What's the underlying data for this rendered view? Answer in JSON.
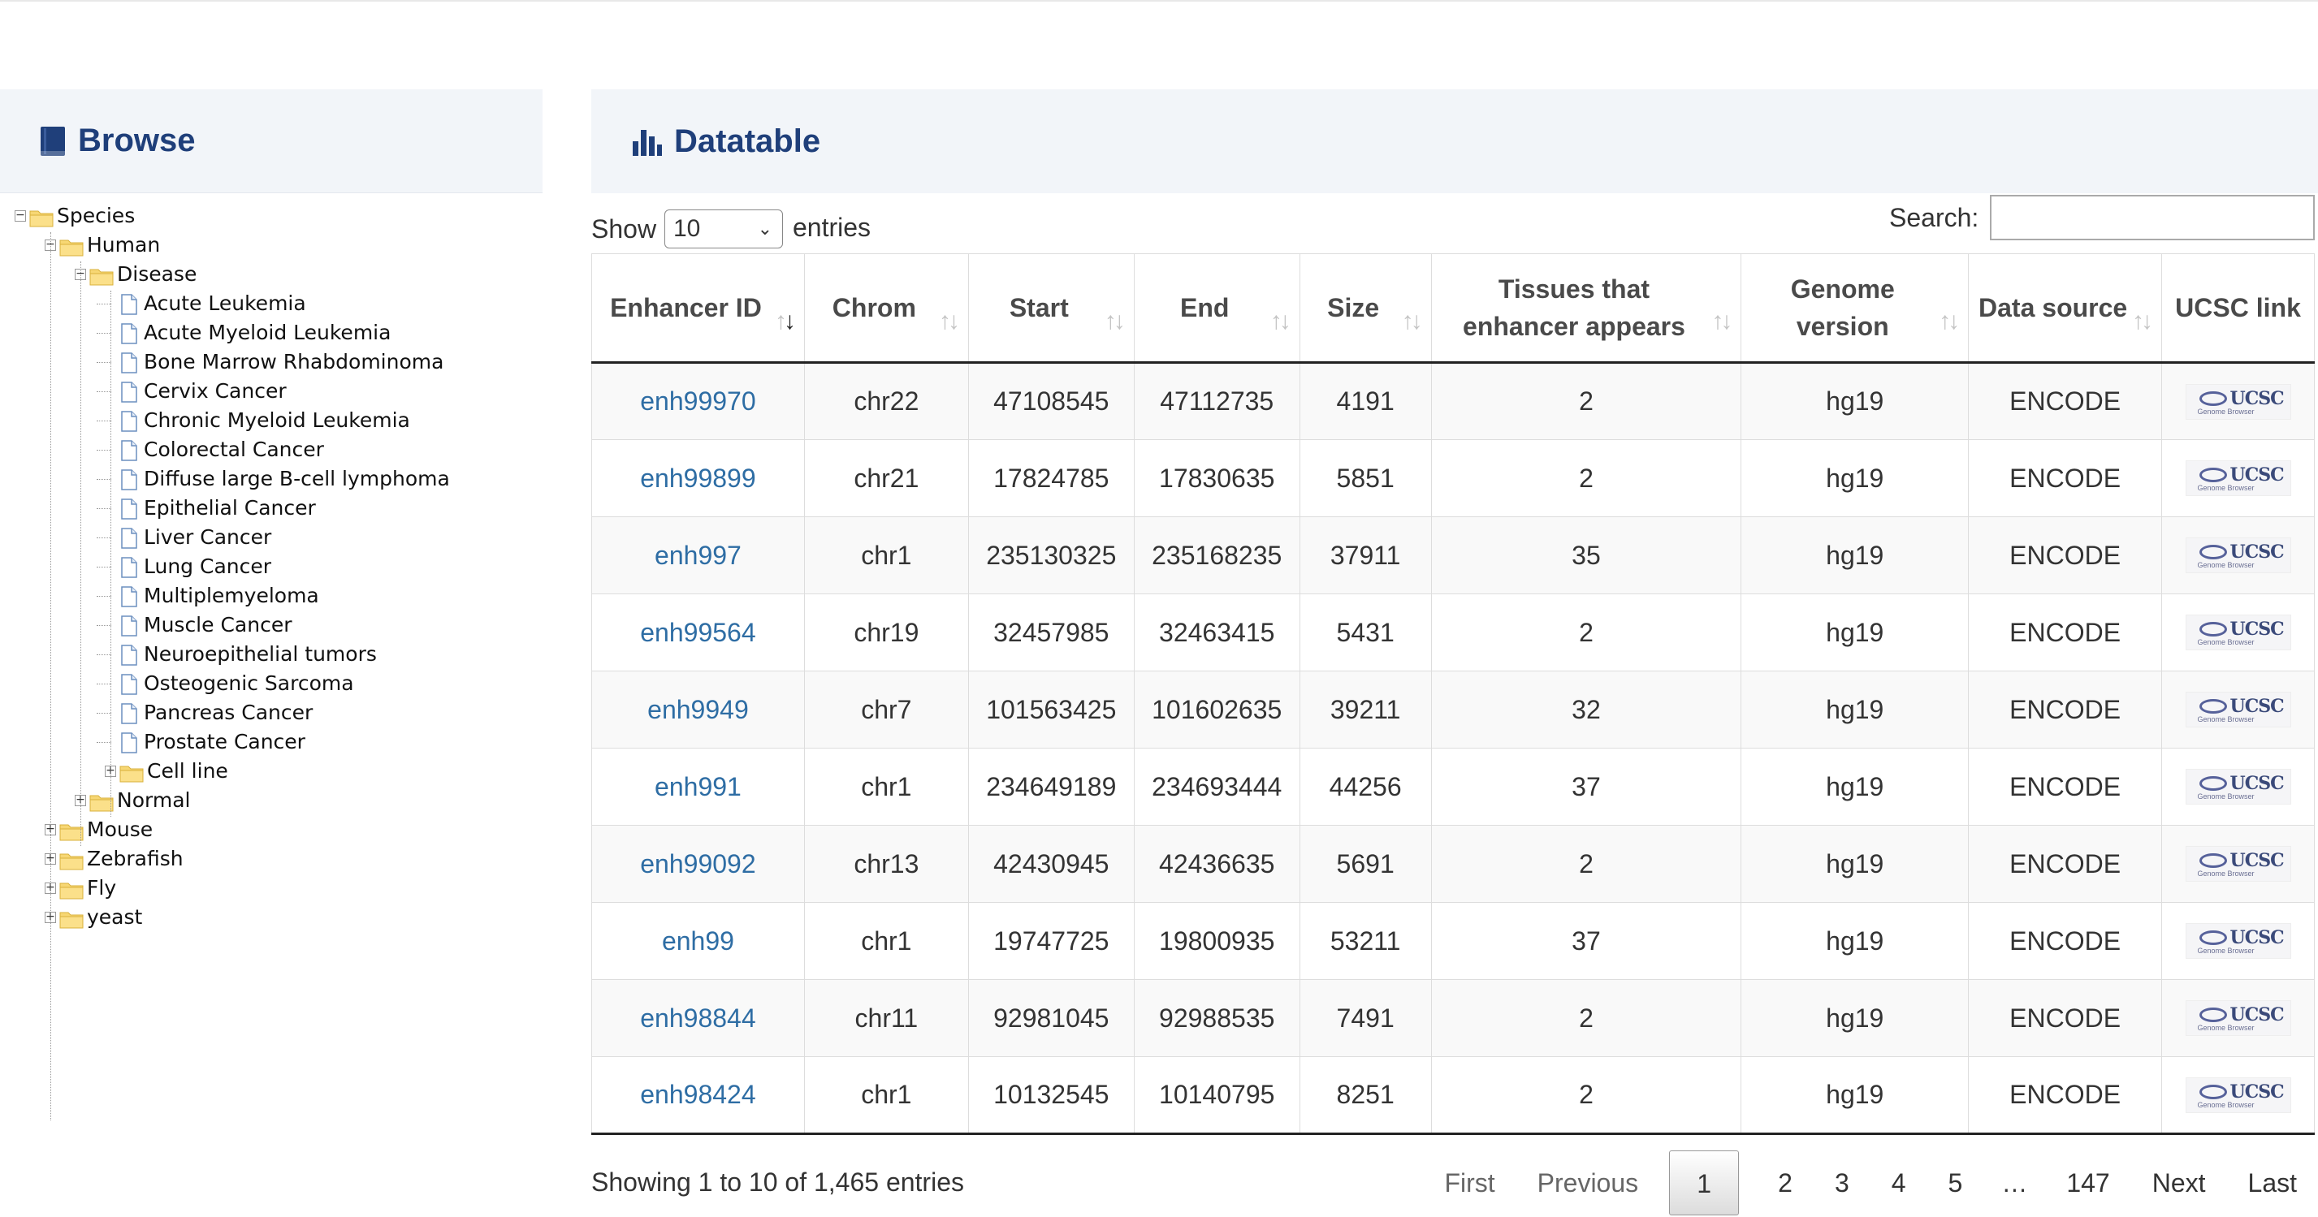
{
  "browse": {
    "title": "Browse",
    "tree": [
      {
        "label": "Species",
        "level": 0,
        "type": "folder",
        "toggle": "−"
      },
      {
        "label": "Human",
        "level": 1,
        "type": "folder",
        "toggle": "−"
      },
      {
        "label": "Disease",
        "level": 2,
        "type": "folder",
        "toggle": "−"
      },
      {
        "label": "Acute Leukemia",
        "level": 3,
        "type": "file"
      },
      {
        "label": "Acute Myeloid Leukemia",
        "level": 3,
        "type": "file"
      },
      {
        "label": "Bone Marrow Rhabdominoma",
        "level": 3,
        "type": "file"
      },
      {
        "label": "Cervix Cancer",
        "level": 3,
        "type": "file"
      },
      {
        "label": "Chronic Myeloid Leukemia",
        "level": 3,
        "type": "file"
      },
      {
        "label": "Colorectal Cancer",
        "level": 3,
        "type": "file"
      },
      {
        "label": "Diffuse large B-cell lymphoma",
        "level": 3,
        "type": "file"
      },
      {
        "label": "Epithelial Cancer",
        "level": 3,
        "type": "file"
      },
      {
        "label": "Liver Cancer",
        "level": 3,
        "type": "file"
      },
      {
        "label": "Lung Cancer",
        "level": 3,
        "type": "file"
      },
      {
        "label": "Multiplemyeloma",
        "level": 3,
        "type": "file"
      },
      {
        "label": "Muscle Cancer",
        "level": 3,
        "type": "file"
      },
      {
        "label": "Neuroepithelial tumors",
        "level": 3,
        "type": "file"
      },
      {
        "label": "Osteogenic Sarcoma",
        "level": 3,
        "type": "file"
      },
      {
        "label": "Pancreas Cancer",
        "level": 3,
        "type": "file"
      },
      {
        "label": "Prostate Cancer",
        "level": 3,
        "type": "file"
      },
      {
        "label": "Cell line",
        "level": 3,
        "type": "folder",
        "toggle": "+"
      },
      {
        "label": "Normal",
        "level": 2,
        "type": "folder",
        "toggle": "+"
      },
      {
        "label": "Mouse",
        "level": 1,
        "type": "folder",
        "toggle": "+"
      },
      {
        "label": "Zebrafish",
        "level": 1,
        "type": "folder",
        "toggle": "+"
      },
      {
        "label": "Fly",
        "level": 1,
        "type": "folder",
        "toggle": "+"
      },
      {
        "label": "yeast",
        "level": 1,
        "type": "folder",
        "toggle": "+"
      }
    ]
  },
  "datatable": {
    "title": "Datatable",
    "show_label": "Show",
    "page_length": "10",
    "entries_label": "entries",
    "search_label": "Search:",
    "search_value": "",
    "columns": [
      {
        "label": "Enhancer ID",
        "sort": "active"
      },
      {
        "label": "Chrom",
        "sort": "both"
      },
      {
        "label": "Start",
        "sort": "both"
      },
      {
        "label": "End",
        "sort": "both"
      },
      {
        "label": "Size",
        "sort": "both"
      },
      {
        "label": "Tissues that enhancer appears",
        "sort": "both"
      },
      {
        "label": "Genome version",
        "sort": "both"
      },
      {
        "label": "Data source",
        "sort": "both"
      },
      {
        "label": "UCSC link",
        "sort": "none"
      }
    ],
    "rows": [
      {
        "id": "enh99970",
        "chrom": "chr22",
        "start": "47108545",
        "end": "47112735",
        "size": "4191",
        "tissues": "2",
        "genome": "hg19",
        "source": "ENCODE"
      },
      {
        "id": "enh99899",
        "chrom": "chr21",
        "start": "17824785",
        "end": "17830635",
        "size": "5851",
        "tissues": "2",
        "genome": "hg19",
        "source": "ENCODE"
      },
      {
        "id": "enh997",
        "chrom": "chr1",
        "start": "235130325",
        "end": "235168235",
        "size": "37911",
        "tissues": "35",
        "genome": "hg19",
        "source": "ENCODE"
      },
      {
        "id": "enh99564",
        "chrom": "chr19",
        "start": "32457985",
        "end": "32463415",
        "size": "5431",
        "tissues": "2",
        "genome": "hg19",
        "source": "ENCODE"
      },
      {
        "id": "enh9949",
        "chrom": "chr7",
        "start": "101563425",
        "end": "101602635",
        "size": "39211",
        "tissues": "32",
        "genome": "hg19",
        "source": "ENCODE"
      },
      {
        "id": "enh991",
        "chrom": "chr1",
        "start": "234649189",
        "end": "234693444",
        "size": "44256",
        "tissues": "37",
        "genome": "hg19",
        "source": "ENCODE"
      },
      {
        "id": "enh99092",
        "chrom": "chr13",
        "start": "42430945",
        "end": "42436635",
        "size": "5691",
        "tissues": "2",
        "genome": "hg19",
        "source": "ENCODE"
      },
      {
        "id": "enh99",
        "chrom": "chr1",
        "start": "19747725",
        "end": "19800935",
        "size": "53211",
        "tissues": "37",
        "genome": "hg19",
        "source": "ENCODE"
      },
      {
        "id": "enh98844",
        "chrom": "chr11",
        "start": "92981045",
        "end": "92988535",
        "size": "7491",
        "tissues": "2",
        "genome": "hg19",
        "source": "ENCODE"
      },
      {
        "id": "enh98424",
        "chrom": "chr1",
        "start": "10132545",
        "end": "10140795",
        "size": "8251",
        "tissues": "2",
        "genome": "hg19",
        "source": "ENCODE"
      }
    ],
    "ucsc_logo_text": "UCSC",
    "ucsc_logo_sub": "Genome Browser",
    "info": "Showing 1 to 10 of 1,465 entries",
    "pagination": {
      "first": "First",
      "previous": "Previous",
      "pages": [
        "1",
        "2",
        "3",
        "4",
        "5"
      ],
      "current": "1",
      "ellipsis": "…",
      "last_page": "147",
      "next": "Next",
      "last": "Last"
    }
  }
}
